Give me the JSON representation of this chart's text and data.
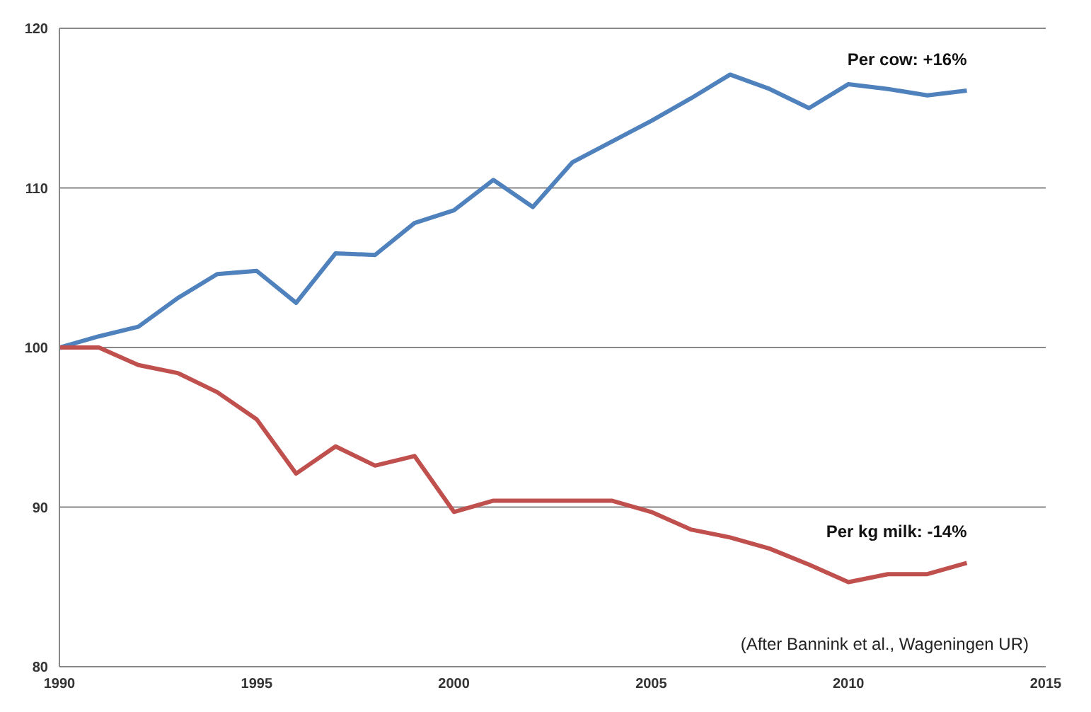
{
  "chart_data": {
    "type": "line",
    "x": [
      1990,
      1991,
      1992,
      1993,
      1994,
      1995,
      1996,
      1997,
      1998,
      1999,
      2000,
      2001,
      2002,
      2003,
      2004,
      2005,
      2006,
      2007,
      2008,
      2009,
      2010,
      2011,
      2012,
      2013
    ],
    "series": [
      {
        "name": "Per cow: +16%",
        "color": "#4f81bd",
        "values": [
          100,
          100.7,
          101.3,
          103.1,
          104.6,
          104.8,
          102.8,
          105.9,
          105.8,
          107.8,
          108.6,
          110.5,
          108.8,
          111.6,
          112.9,
          114.2,
          115.6,
          117.1,
          116.2,
          115.0,
          116.5,
          116.2,
          115.8,
          116.1
        ]
      },
      {
        "name": "Per kg milk: -14%",
        "color": "#c0504d",
        "values": [
          100,
          100,
          98.9,
          98.4,
          97.2,
          95.5,
          92.1,
          93.8,
          92.6,
          93.2,
          89.7,
          90.4,
          90.4,
          90.4,
          90.4,
          89.7,
          88.6,
          88.1,
          87.4,
          86.4,
          85.3,
          85.8,
          85.8,
          86.5
        ]
      }
    ],
    "xlim": [
      1990,
      2015
    ],
    "xticks": [
      1990,
      1995,
      2000,
      2005,
      2010,
      2015
    ],
    "ylim": [
      80,
      120
    ],
    "yticks": [
      80,
      90,
      100,
      110,
      120
    ],
    "grid": "y",
    "marker": "none",
    "line_style": "solid",
    "annotations": [
      "(After Bannink et al., Wageningen UR)"
    ]
  }
}
